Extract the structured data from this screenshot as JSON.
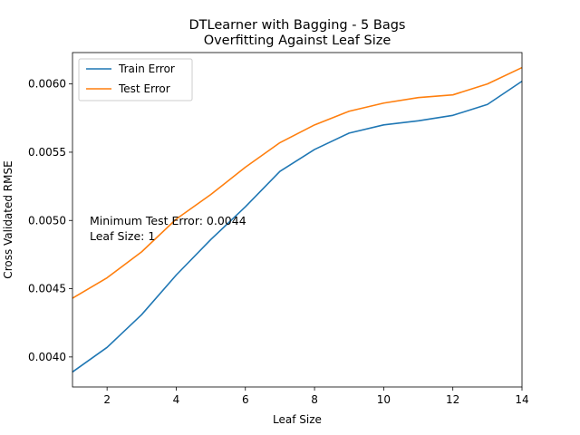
{
  "chart_data": {
    "type": "line",
    "title": [
      "DTLearner with Bagging - 5 Bags",
      "Overfitting Against Leaf Size"
    ],
    "xlabel": "Leaf Size",
    "ylabel": "Cross Validated RMSE",
    "xlim": [
      1,
      14
    ],
    "ylim": [
      0.00378,
      0.00623
    ],
    "x_ticks": [
      2,
      4,
      6,
      8,
      10,
      12,
      14
    ],
    "y_ticks": [
      0.004,
      0.0045,
      0.005,
      0.0055,
      0.006
    ],
    "y_tick_labels": [
      "0.0040",
      "0.0045",
      "0.0050",
      "0.0055",
      "0.0060"
    ],
    "grid": false,
    "legend_position": "upper-left",
    "x": [
      1,
      2,
      3,
      4,
      5,
      6,
      7,
      8,
      9,
      10,
      11,
      12,
      13,
      14
    ],
    "series": [
      {
        "name": "Train Error",
        "color": "#1f77b4",
        "values": [
          0.00389,
          0.00407,
          0.00431,
          0.0046,
          0.00486,
          0.0051,
          0.00536,
          0.00552,
          0.00564,
          0.0057,
          0.00573,
          0.00577,
          0.00585,
          0.00602
        ]
      },
      {
        "name": "Test Error",
        "color": "#ff7f0e",
        "values": [
          0.00443,
          0.00458,
          0.00477,
          0.00501,
          0.00519,
          0.00539,
          0.00557,
          0.0057,
          0.0058,
          0.00586,
          0.0059,
          0.00592,
          0.006,
          0.00612
        ]
      }
    ],
    "annotation": [
      "Minimum Test Error: 0.0044",
      "Leaf Size: 1"
    ]
  }
}
